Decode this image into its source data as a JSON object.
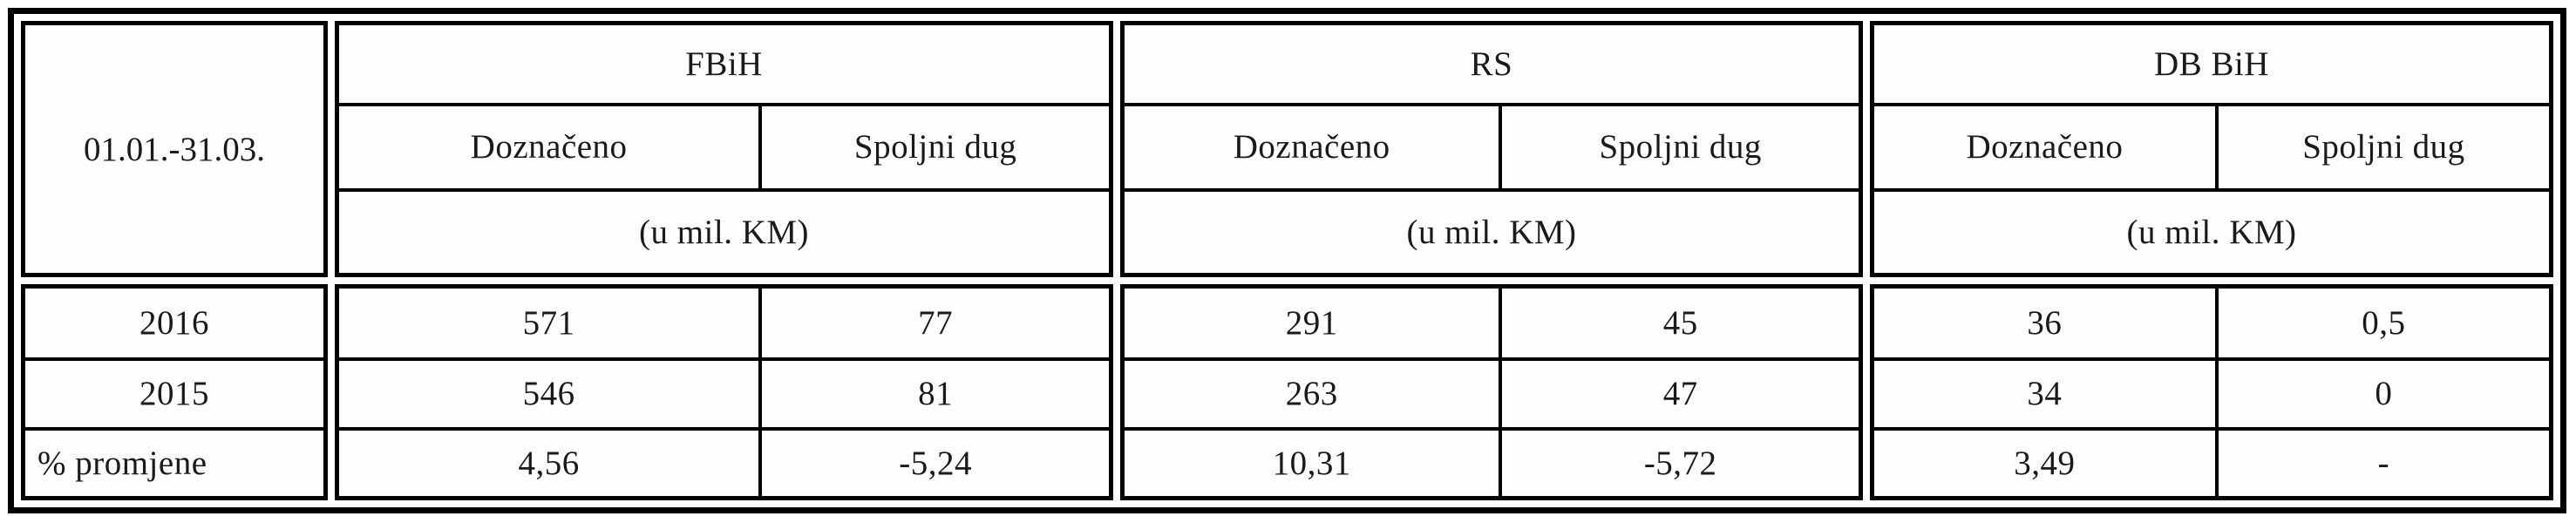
{
  "table": {
    "period_label": "01.01.-31.03.",
    "sections": [
      {
        "name": "FBiH",
        "columns": [
          "Doznačeno",
          "Spoljni dug"
        ],
        "unit": "(u mil. KM)"
      },
      {
        "name": "RS",
        "columns": [
          "Doznačeno",
          "Spoljni dug"
        ],
        "unit": "(u mil. KM)"
      },
      {
        "name": "DB BiH",
        "columns": [
          "Doznačeno",
          "Spoljni dug"
        ],
        "unit": "(u mil. KM)"
      }
    ],
    "rows": [
      {
        "label": "2016",
        "values": [
          "571",
          "77",
          "291",
          "45",
          "36",
          "0,5"
        ]
      },
      {
        "label": "2015",
        "values": [
          "546",
          "81",
          "263",
          "47",
          "34",
          "0"
        ]
      },
      {
        "label": "% promjene",
        "values": [
          "4,56",
          "-5,24",
          "10,31",
          "-5,72",
          "3,49",
          "-"
        ]
      }
    ],
    "colors": {
      "border": "#000000",
      "background": "#ffffff",
      "text": "#1a1a1a"
    }
  }
}
